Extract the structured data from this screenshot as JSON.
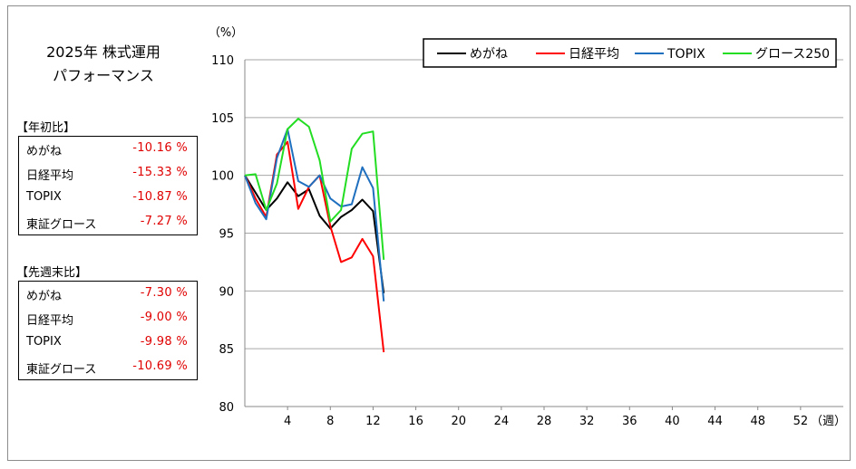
{
  "title": {
    "line1": "2025年 株式運用",
    "line2": "パフォーマンス"
  },
  "ytd": {
    "label": "【年初比】",
    "rows": [
      {
        "name": "めがね",
        "value": "-10.16 %"
      },
      {
        "name": "日経平均",
        "value": "-15.33 %"
      },
      {
        "name": "TOPIX",
        "value": "-10.87 %"
      },
      {
        "name": "東証グロース",
        "value": "-7.27 %"
      }
    ]
  },
  "wow": {
    "label": "【先週末比】",
    "rows": [
      {
        "name": "めがね",
        "value": "-7.30 %"
      },
      {
        "name": "日経平均",
        "value": "-9.00 %"
      },
      {
        "name": "TOPIX",
        "value": "-9.98 %"
      },
      {
        "name": "東証グロース",
        "value": "-10.69 %"
      }
    ]
  },
  "chart_data": {
    "type": "line",
    "yunit": "（%）",
    "xunit": "（週）",
    "ylim": [
      80,
      110
    ],
    "xlim": [
      0,
      56
    ],
    "yticks": [
      80,
      85,
      90,
      95,
      100,
      105,
      110
    ],
    "xticks": [
      4,
      8,
      12,
      16,
      20,
      24,
      28,
      32,
      36,
      40,
      44,
      48,
      52
    ],
    "grid": "horizontal",
    "legend_position": "top-right",
    "series": [
      {
        "name": "めがね",
        "color": "#000000",
        "x": [
          0,
          1,
          2,
          3,
          4,
          5,
          6,
          7,
          8,
          9,
          10,
          11,
          12,
          13
        ],
        "y": [
          100,
          98.5,
          97,
          98,
          99.4,
          98.2,
          98.8,
          96.5,
          95.4,
          96.4,
          97,
          97.9,
          96.9,
          89.8
        ]
      },
      {
        "name": "日経平均",
        "color": "#ff0000",
        "x": [
          0,
          1,
          2,
          3,
          4,
          5,
          6,
          7,
          8,
          9,
          10,
          11,
          12,
          13
        ],
        "y": [
          100,
          98,
          96.4,
          101.8,
          102.9,
          97.1,
          99,
          100,
          95.6,
          92.5,
          92.9,
          94.5,
          93,
          84.7
        ]
      },
      {
        "name": "TOPIX",
        "color": "#1f6fbf",
        "x": [
          0,
          1,
          2,
          3,
          4,
          5,
          6,
          7,
          8,
          9,
          10,
          11,
          12,
          13
        ],
        "y": [
          100,
          97.6,
          96.2,
          101.5,
          104,
          99.5,
          99,
          100,
          98,
          97.3,
          97.5,
          100.7,
          98.9,
          89.1
        ]
      },
      {
        "name": "グロース250",
        "color": "#22dd22",
        "x": [
          0,
          1,
          2,
          3,
          4,
          5,
          6,
          7,
          8,
          9,
          10,
          11,
          12,
          13
        ],
        "y": [
          100,
          100.1,
          97,
          99.3,
          104,
          104.9,
          104.2,
          101.3,
          96,
          97,
          102.3,
          103.6,
          103.8,
          92.7
        ]
      }
    ]
  }
}
